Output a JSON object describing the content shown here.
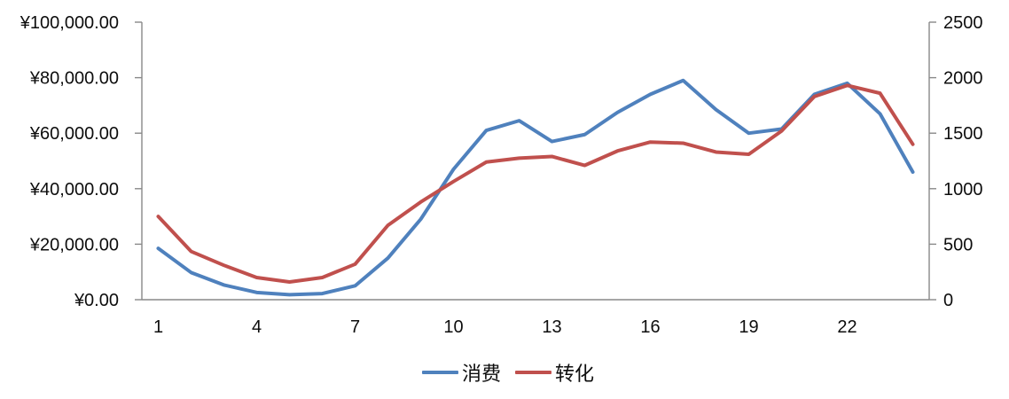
{
  "chart_data": {
    "type": "line",
    "title": "",
    "categories": [
      1,
      2,
      3,
      4,
      5,
      6,
      7,
      8,
      9,
      10,
      11,
      12,
      13,
      14,
      15,
      16,
      17,
      18,
      19,
      20,
      21,
      22,
      23,
      24
    ],
    "x_tick_labels": [
      "1",
      "4",
      "7",
      "10",
      "13",
      "16",
      "19",
      "22"
    ],
    "x_tick_values": [
      1,
      4,
      7,
      10,
      13,
      16,
      19,
      22
    ],
    "series": [
      {
        "name": "消费",
        "yaxis": "left",
        "color": "#4F81BD",
        "values": [
          18500,
          9800,
          5300,
          2600,
          1800,
          2200,
          5000,
          15000,
          29000,
          47000,
          61000,
          64500,
          57000,
          59500,
          67500,
          74000,
          79000,
          68500,
          60000,
          61500,
          74000,
          78000,
          67000,
          46000
        ]
      },
      {
        "name": "转化",
        "yaxis": "right",
        "color": "#C0504D",
        "values": [
          750,
          435,
          310,
          200,
          160,
          200,
          320,
          670,
          880,
          1065,
          1240,
          1275,
          1290,
          1210,
          1340,
          1420,
          1410,
          1330,
          1310,
          1520,
          1830,
          1930,
          1860,
          1400
        ]
      }
    ],
    "left_axis": {
      "min": 0,
      "max": 100000,
      "tick_labels": [
        "¥0.00",
        "¥20,000.00",
        "¥40,000.00",
        "¥60,000.00",
        "¥80,000.00",
        "¥100,000.00"
      ]
    },
    "right_axis": {
      "min": 0,
      "max": 2500,
      "tick_labels": [
        "0",
        "500",
        "1000",
        "1500",
        "2000",
        "2500"
      ]
    },
    "grid": false,
    "legend_position": "bottom",
    "axis_color": "#898989",
    "text_color": "#0d0d0d",
    "background": "#ffffff"
  }
}
